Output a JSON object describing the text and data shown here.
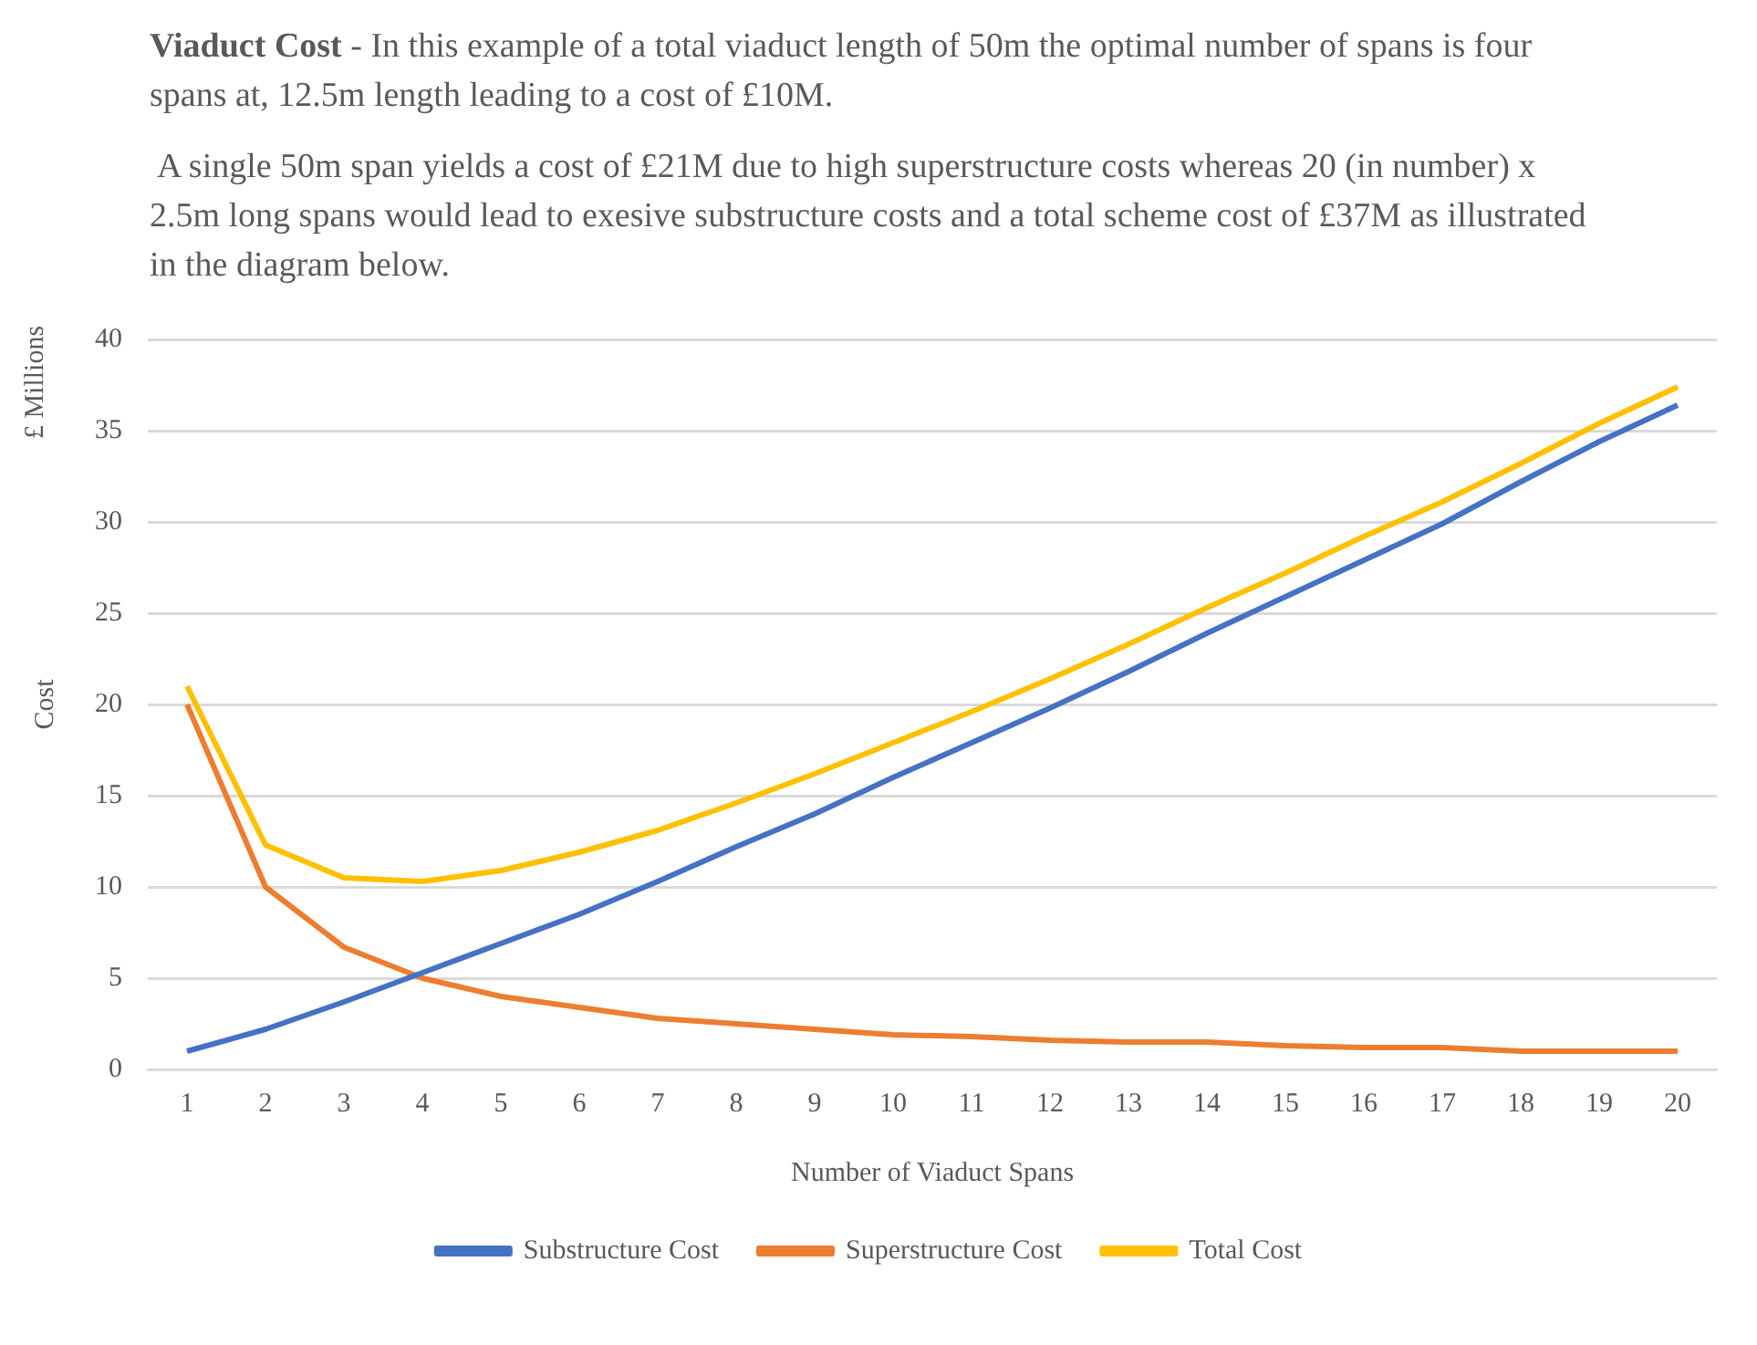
{
  "chart_data": {
    "type": "line",
    "title": "Viaduct Cost",
    "subtitle": "- In this example of a total viaduct length of 50m the optimal number of spans is four spans at, 12.5m length leading to a cost of £10M.",
    "annotations": [
      "A single 50m span yields a cost of £21M due to high superstructure costs whereas 20 (in number) x 2.5m long spans would lead to exesive substructure costs and a total scheme cost of £37M as illustrated in the diagram below.",
      "£ Millions"
    ],
    "xlabel": "Number of Viaduct Spans",
    "ylabel": "Cost",
    "x": [
      1,
      2,
      3,
      4,
      5,
      6,
      7,
      8,
      9,
      10,
      11,
      12,
      13,
      14,
      15,
      16,
      17,
      18,
      19,
      20
    ],
    "xlim": [
      0.5,
      20.5
    ],
    "xticks": [
      1,
      2,
      3,
      4,
      5,
      6,
      7,
      8,
      9,
      10,
      11,
      12,
      13,
      14,
      15,
      16,
      17,
      18,
      19,
      20
    ],
    "series": [
      {
        "name": "Substructure Cost",
        "color": "#4472c4",
        "values": [
          1.0,
          2.2,
          3.7,
          5.3,
          6.9,
          8.5,
          10.3,
          12.2,
          14.0,
          16.0,
          17.9,
          19.8,
          21.8,
          23.9,
          25.9,
          27.9,
          29.9,
          32.2,
          34.4,
          36.4
        ]
      },
      {
        "name": "Superstructure Cost",
        "color": "#ed7d31",
        "values": [
          20,
          10,
          6.7,
          5.0,
          4.0,
          3.4,
          2.8,
          2.5,
          2.2,
          1.9,
          1.8,
          1.6,
          1.5,
          1.5,
          1.3,
          1.2,
          1.2,
          1.0,
          1.0,
          1.0
        ]
      },
      {
        "name": "Total Cost",
        "color": "#ffc000",
        "values": [
          21,
          12.3,
          10.5,
          10.3,
          10.9,
          11.9,
          13.1,
          14.6,
          16.2,
          17.9,
          19.6,
          21.4,
          23.3,
          25.3,
          27.2,
          29.2,
          31.1,
          33.2,
          35.4,
          37.4
        ]
      }
    ],
    "ylim": [
      0,
      40
    ],
    "yticks": [
      0,
      5,
      10,
      15,
      20,
      25,
      30,
      35,
      40
    ],
    "grid": "y",
    "legend": "bottom",
    "marker": "none",
    "line_style": "solid"
  }
}
